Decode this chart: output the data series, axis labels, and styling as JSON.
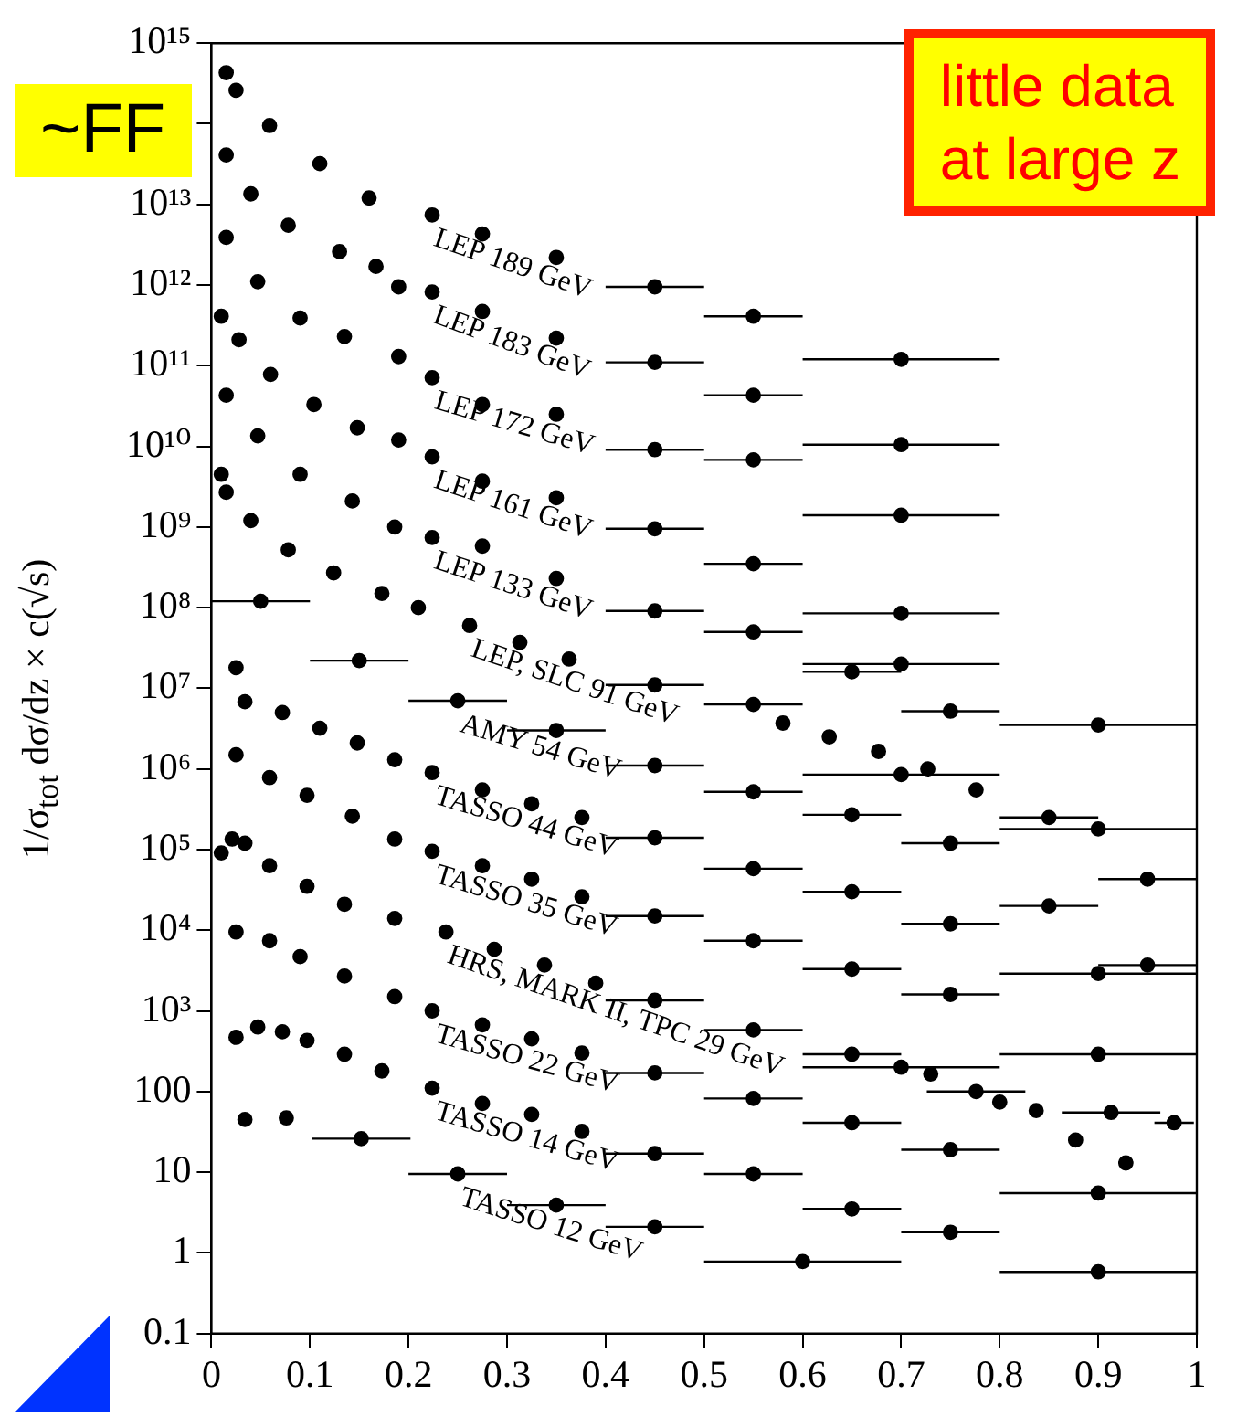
{
  "chart_data": {
    "type": "scatter",
    "ylabel": "1/σ$_{tot}$ dσ/dz × c(√s)",
    "marker": "circle",
    "log": "y",
    "xlim": [
      0,
      1
    ],
    "xticks": [
      0,
      0.1,
      0.2,
      0.3,
      0.4,
      0.5,
      0.6,
      0.7,
      0.8,
      0.9,
      1
    ],
    "ylim": [
      0.1,
      1000000000000000.0
    ],
    "yticks": [
      0.1,
      1,
      10,
      100,
      {
        "value": 1000,
        "label": "10³"
      },
      {
        "value": 10000.0,
        "label": "10⁴"
      },
      {
        "value": 100000.0,
        "label": "10⁵"
      },
      {
        "value": 1000000.0,
        "label": "10⁶"
      },
      {
        "value": 10000000.0,
        "label": "10⁷"
      },
      {
        "value": 100000000.0,
        "label": "10⁸"
      },
      {
        "value": 1000000000.0,
        "label": "10⁹"
      },
      {
        "value": 10000000000.0,
        "label": "10¹⁰"
      },
      {
        "value": 100000000000.0,
        "label": "10¹¹"
      },
      {
        "value": 1000000000000.0,
        "label": "10¹²"
      },
      {
        "value": 10000000000000.0,
        "label": "10¹³"
      },
      {
        "value": 100000000000000.0,
        "label": null
      },
      {
        "value": 1000000000000000.0,
        "label": "10¹⁵"
      }
    ],
    "annotations": [
      "~FF",
      "little data\nat large z"
    ],
    "series": [
      {
        "name": "LEP 189 GeV",
        "color": "#000000",
        "x": [
          0.015,
          0.025,
          0.059,
          0.11,
          0.16,
          0.224,
          0.275,
          0.35,
          0.45,
          0.55,
          0.7
        ],
        "values": [
          430000000000000.0,
          260000000000000.0,
          95000000000000.0,
          32000000000000.0,
          12000000000000.0,
          7400000000000.0,
          4300000000000.0,
          2200000000000.0,
          950000000000.0,
          410000000000.0,
          120000000000.0
        ],
        "xerrors": [
          null,
          null,
          null,
          null,
          null,
          null,
          null,
          null,
          0.05,
          0.05,
          0.1
        ]
      },
      {
        "name": "LEP 183 GeV",
        "color": "#000000",
        "x": [
          0.015,
          0.04,
          0.078,
          0.13,
          0.167,
          0.19,
          0.224,
          0.275,
          0.35,
          0.45,
          0.55,
          0.7
        ],
        "values": [
          41000000000000.0,
          13500000000000.0,
          5500000000000.0,
          2600000000000.0,
          1700000000000.0,
          950000000000.0,
          820000000000.0,
          470000000000.0,
          220000000000.0,
          110000000000.0,
          43000000000.0,
          10500000000.0
        ],
        "xerrors": [
          null,
          null,
          null,
          null,
          null,
          null,
          null,
          null,
          null,
          0.05,
          0.05,
          0.1
        ]
      },
      {
        "name": "LEP 172 GeV",
        "color": "#000000",
        "x": [
          0.015,
          0.047,
          0.09,
          0.135,
          0.19,
          0.224,
          0.275,
          0.35,
          0.45,
          0.55,
          0.7
        ],
        "values": [
          3900000000000.0,
          1100000000000.0,
          390000000000.0,
          230000000000.0,
          130000000000.0,
          71000000000.0,
          33000000000.0,
          25000000000.0,
          9100000000.0,
          6800000000.0,
          1400000000.0
        ],
        "xerrors": [
          null,
          null,
          null,
          null,
          null,
          null,
          null,
          null,
          0.05,
          0.05,
          0.1
        ]
      },
      {
        "name": "LEP 161 GeV",
        "color": "#000000",
        "x": [
          0.01,
          0.028,
          0.06,
          0.104,
          0.148,
          0.19,
          0.224,
          0.275,
          0.35,
          0.45,
          0.55,
          0.7
        ],
        "values": [
          410000000000.0,
          210000000000.0,
          78000000000.0,
          33000000000.0,
          17000000000.0,
          12000000000.0,
          7400000000.0,
          3700000000.0,
          2300000000.0,
          950000000.0,
          350000000.0,
          85000000.0
        ],
        "xerrors": [
          null,
          null,
          null,
          null,
          null,
          null,
          null,
          null,
          null,
          0.05,
          0.05,
          0.1
        ]
      },
      {
        "name": "LEP 133 GeV",
        "color": "#000000",
        "x": [
          0.015,
          0.047,
          0.09,
          0.143,
          0.186,
          0.224,
          0.275,
          0.35,
          0.45,
          0.55,
          0.65,
          0.7,
          0.75,
          0.9
        ],
        "values": [
          43000000000.0,
          13500000000.0,
          4500000000.0,
          2100000000.0,
          1000000000.0,
          740000000.0,
          580000000.0,
          230000000.0,
          91000000.0,
          50000000.0,
          16000000.0,
          20000000.0,
          5200000.0,
          3500000.0
        ],
        "xerrors": [
          null,
          null,
          null,
          null,
          null,
          null,
          null,
          null,
          0.05,
          0.05,
          0.05,
          0.1,
          0.05,
          0.1
        ]
      },
      {
        "name": "LEP, SLC 91 GeV",
        "color": "#000000",
        "x": [
          0.01,
          0.015,
          0.04,
          0.078,
          0.124,
          0.173,
          0.21,
          0.262,
          0.313,
          0.363,
          0.45,
          0.55,
          0.58,
          0.627,
          0.677,
          0.7,
          0.727,
          0.776,
          0.85,
          0.9,
          0.95
        ],
        "values": [
          4500000000.0,
          2700000000.0,
          1200000000.0,
          520000000.0,
          270000000.0,
          150000000.0,
          100000000.0,
          60000000.0,
          37000000.0,
          23000000.0,
          11000000.0,
          6300000.0,
          3700000.0,
          2500000.0,
          1650000.0,
          850000.0,
          1000000.0,
          550000.0,
          250000.0,
          180000.0,
          43000.0
        ],
        "xerrors": [
          null,
          null,
          null,
          null,
          null,
          null,
          null,
          null,
          null,
          null,
          0.05,
          0.05,
          null,
          null,
          null,
          0.1,
          null,
          null,
          0.05,
          0.1,
          0.05
        ]
      },
      {
        "name": "AMY 54 GeV",
        "color": "#000000",
        "x": [
          0.05,
          0.15,
          0.25,
          0.35,
          0.45,
          0.55,
          0.65,
          0.75,
          0.85,
          0.95
        ],
        "values": [
          120000000.0,
          22000000.0,
          7000000.0,
          3000000.0,
          1100000.0,
          520000.0,
          270000.0,
          120000.0,
          20000.0,
          3700.0
        ],
        "xerrors": [
          0.05,
          0.05,
          0.05,
          0.05,
          0.05,
          0.05,
          0.05,
          0.05,
          0.05,
          0.05
        ]
      },
      {
        "name": "TASSO 44 GeV",
        "color": "#000000",
        "x": [
          0.025,
          0.034,
          0.072,
          0.11,
          0.148,
          0.186,
          0.224,
          0.275,
          0.325,
          0.376,
          0.45,
          0.55,
          0.65,
          0.75,
          0.9
        ],
        "values": [
          18000000.0,
          6800000.0,
          5000000.0,
          3200000.0,
          2100000.0,
          1300000.0,
          900000.0,
          550000.0,
          370000.0,
          250000.0,
          140000.0,
          58000.0,
          30000.0,
          12000.0,
          2900.0
        ],
        "xerrors": [
          null,
          null,
          null,
          null,
          null,
          null,
          null,
          null,
          null,
          null,
          0.05,
          0.05,
          0.05,
          0.05,
          0.1
        ]
      },
      {
        "name": "TASSO 35 GeV",
        "color": "#000000",
        "x": [
          0.025,
          0.059,
          0.097,
          0.143,
          0.186,
          0.224,
          0.275,
          0.325,
          0.376,
          0.45,
          0.55,
          0.65,
          0.75,
          0.9
        ],
        "values": [
          1500000.0,
          780000.0,
          470000.0,
          260000.0,
          135000.0,
          95000.0,
          63000.0,
          43000.0,
          26000.0,
          15000.0,
          7400.0,
          3300.0,
          1600.0,
          290
        ],
        "xerrors": [
          null,
          null,
          null,
          null,
          null,
          null,
          null,
          null,
          null,
          0.05,
          0.05,
          0.05,
          0.05,
          0.1
        ]
      },
      {
        "name": "HRS, MARK II, TPC 29 GeV",
        "color": "#000000",
        "x": [
          0.01,
          0.021,
          0.034,
          0.059,
          0.097,
          0.135,
          0.186,
          0.238,
          0.287,
          0.338,
          0.39,
          0.45,
          0.55,
          0.65,
          0.7,
          0.73,
          0.776,
          0.8,
          0.837,
          0.877,
          0.913,
          0.928,
          0.977
        ],
        "values": [
          91000.0,
          135000.0,
          120000.0,
          63000.0,
          35000.0,
          21000.0,
          14000.0,
          9500.0,
          5800.0,
          3700.0,
          2200.0,
          1350.0,
          580,
          290,
          200,
          165,
          100,
          74,
          58,
          25,
          55,
          13,
          41
        ],
        "xerrors": [
          null,
          null,
          null,
          null,
          null,
          null,
          null,
          null,
          null,
          null,
          null,
          0.05,
          0.05,
          0.05,
          0.1,
          null,
          0.05,
          null,
          null,
          null,
          0.05,
          null,
          0.02
        ]
      },
      {
        "name": "TASSO 22 GeV",
        "color": "#000000",
        "x": [
          0.025,
          0.059,
          0.09,
          0.135,
          0.186,
          0.224,
          0.275,
          0.325,
          0.376,
          0.45,
          0.55,
          0.65,
          0.75,
          0.9
        ],
        "values": [
          9500.0,
          7400.0,
          4700.0,
          2700.0,
          1500.0,
          1000.0,
          670,
          450,
          300,
          170,
          82,
          41,
          19,
          5.5
        ],
        "xerrors": [
          null,
          null,
          null,
          null,
          null,
          null,
          null,
          null,
          null,
          0.05,
          0.05,
          0.05,
          0.05,
          0.1
        ]
      },
      {
        "name": "TASSO 14 GeV",
        "color": "#000000",
        "x": [
          0.025,
          0.047,
          0.072,
          0.097,
          0.135,
          0.173,
          0.224,
          0.275,
          0.325,
          0.376,
          0.45,
          0.55,
          0.65,
          0.75,
          0.9
        ],
        "values": [
          470,
          630,
          550,
          430,
          290,
          180,
          110,
          71,
          52,
          32,
          17,
          9.5,
          3.5,
          1.8,
          0.58
        ],
        "xerrors": [
          null,
          null,
          null,
          null,
          null,
          null,
          null,
          null,
          null,
          null,
          0.05,
          0.05,
          0.05,
          0.05,
          0.1
        ]
      },
      {
        "name": "TASSO 12 GeV",
        "color": "#000000",
        "x": [
          0.034,
          0.076,
          0.152,
          0.25,
          0.35,
          0.45,
          0.6
        ],
        "values": [
          45,
          47,
          26,
          9.5,
          3.9,
          2.1,
          0.78
        ],
        "xerrors": [
          null,
          null,
          0.05,
          0.05,
          0.05,
          0.05,
          0.1
        ]
      }
    ]
  }
}
